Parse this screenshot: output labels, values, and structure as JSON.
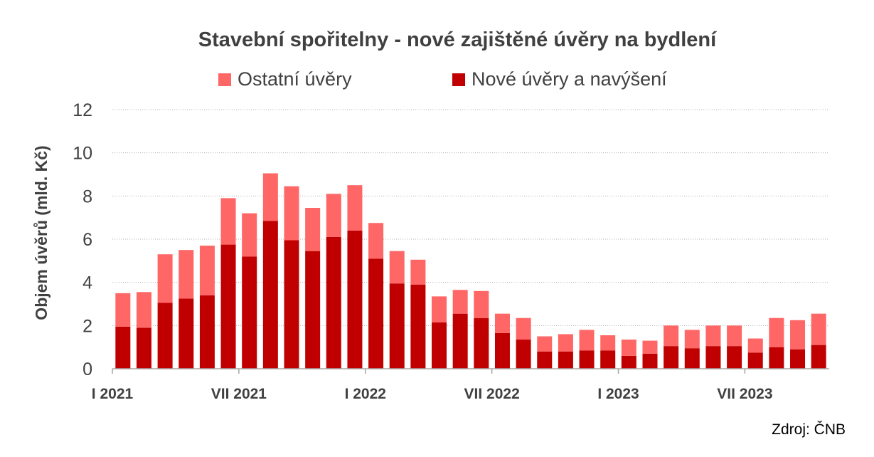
{
  "chart_data": {
    "type": "bar",
    "stacked": true,
    "title": "Stavební spořitelny - nové zajištěné úvěry na bydlení",
    "ylabel": "Objem úvěrů (mld. Kč)",
    "xlabel": "",
    "ylim": [
      0,
      12
    ],
    "yticks": [
      0,
      2,
      4,
      6,
      8,
      10,
      12
    ],
    "grid": true,
    "legend_position": "top",
    "x_tick_labels": [
      {
        "index": 0,
        "label": "I 2021"
      },
      {
        "index": 6,
        "label": "VII 2021"
      },
      {
        "index": 12,
        "label": "I 2022"
      },
      {
        "index": 18,
        "label": "VII 2022"
      },
      {
        "index": 24,
        "label": "I 2023"
      },
      {
        "index": 30,
        "label": "VII 2023"
      }
    ],
    "categories": [
      "2021-01",
      "2021-02",
      "2021-03",
      "2021-04",
      "2021-05",
      "2021-06",
      "2021-07",
      "2021-08",
      "2021-09",
      "2021-10",
      "2021-11",
      "2021-12",
      "2022-01",
      "2022-02",
      "2022-03",
      "2022-04",
      "2022-05",
      "2022-06",
      "2022-07",
      "2022-08",
      "2022-09",
      "2022-10",
      "2022-11",
      "2022-12",
      "2023-01",
      "2023-02",
      "2023-03",
      "2023-04",
      "2023-05",
      "2023-06",
      "2023-07",
      "2023-08",
      "2023-09",
      "2023-10"
    ],
    "series": [
      {
        "name": "Nové úvěry a navýšení",
        "color": "#c00000",
        "values": [
          1.95,
          1.9,
          3.05,
          3.25,
          3.4,
          5.75,
          5.2,
          6.85,
          5.95,
          5.45,
          6.1,
          6.4,
          5.1,
          3.95,
          3.9,
          2.15,
          2.55,
          2.35,
          1.65,
          1.35,
          0.8,
          0.8,
          0.85,
          0.85,
          0.6,
          0.7,
          1.05,
          0.95,
          1.05,
          1.05,
          0.75,
          1.0,
          0.9,
          1.1
        ]
      },
      {
        "name": "Ostatní úvěry",
        "color": "#ff6666",
        "values": [
          1.55,
          1.65,
          2.25,
          2.25,
          2.3,
          2.15,
          2.0,
          2.2,
          2.5,
          2.0,
          2.0,
          2.1,
          1.65,
          1.5,
          1.15,
          1.2,
          1.1,
          1.25,
          0.9,
          1.0,
          0.7,
          0.8,
          0.95,
          0.7,
          0.75,
          0.6,
          0.95,
          0.85,
          0.95,
          0.95,
          0.65,
          1.35,
          1.35,
          1.45
        ]
      }
    ],
    "source_note": "Zdroj: ČNB"
  },
  "legend": {
    "items": [
      {
        "label": "Ostatní úvěry",
        "color": "#ff6666"
      },
      {
        "label": "Nové úvěry a navýšení",
        "color": "#c00000"
      }
    ]
  }
}
